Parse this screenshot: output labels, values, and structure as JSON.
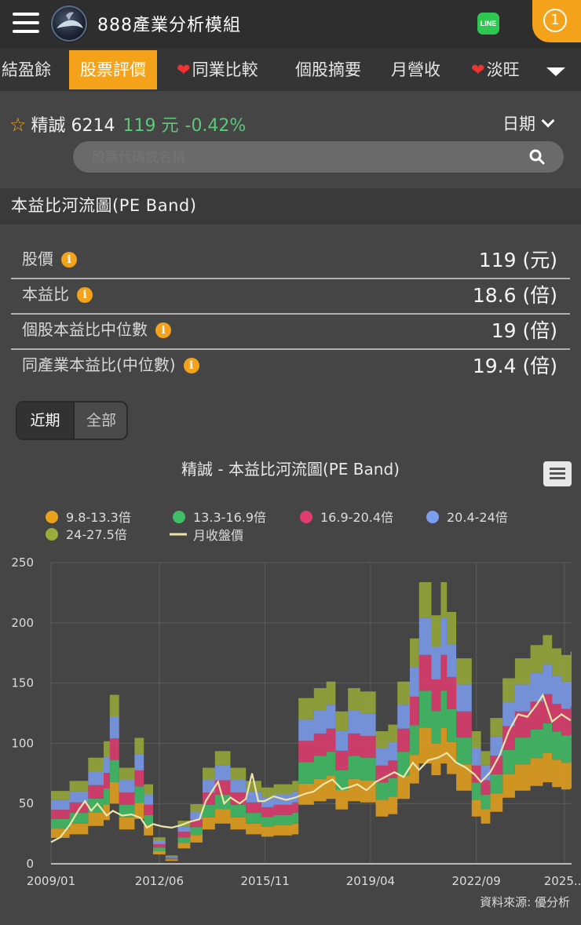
{
  "header": {
    "app_title": "888產業分析模組",
    "line_label": "LINE",
    "notification_count": "1"
  },
  "tabs": [
    {
      "label": "結盈餘",
      "active": false,
      "heart": false
    },
    {
      "label": "股票評價",
      "active": true,
      "heart": false
    },
    {
      "label": "同業比較",
      "active": false,
      "heart": true
    },
    {
      "label": "個股摘要",
      "active": false,
      "heart": false
    },
    {
      "label": "月營收",
      "active": false,
      "heart": false
    },
    {
      "label": "淡旺",
      "active": false,
      "heart": true
    }
  ],
  "stock": {
    "name_code": "精誠 6214",
    "price": "119 元",
    "change": "-0.42%",
    "date_label": "日期"
  },
  "search": {
    "placeholder": "股票代碼或名稱"
  },
  "section": {
    "title": "本益比河流圖(PE Band)"
  },
  "metrics": [
    {
      "label": "股價",
      "value": "119 (元)"
    },
    {
      "label": "本益比",
      "value": "18.6 (倍)"
    },
    {
      "label": "個股本益比中位數",
      "value": "19 (倍)"
    },
    {
      "label": "同產業本益比(中位數)",
      "value": "19.4 (倍)"
    }
  ],
  "range": {
    "recent": "近期",
    "all": "全部",
    "selected": "recent"
  },
  "colors": {
    "accent": "#f5a21b",
    "up_down": "#5cc879",
    "band1": "#e8a21c",
    "band2": "#3fbf66",
    "band3": "#e13c6e",
    "band4": "#7c9ef0",
    "band5": "#9aac3a",
    "price_line": "#ede6a8"
  },
  "chart_data": {
    "type": "area",
    "title": "精誠 - 本益比河流圖(PE Band)",
    "x_tick_labels": [
      "2009/01",
      "2012/06",
      "2015/11",
      "2019/04",
      "2022/09",
      "2025..."
    ],
    "y_ticks": [
      0,
      50,
      100,
      150,
      200,
      250
    ],
    "ylim": [
      0,
      250
    ],
    "grid": true,
    "legend_position": "top",
    "band_lower_multiples": [
      9.8,
      13.3,
      16.9,
      20.4,
      24,
      27.5
    ],
    "eps_ttm": [
      [
        2009.0,
        2.2
      ],
      [
        2009.6,
        2.5
      ],
      [
        2010.2,
        3.2
      ],
      [
        2010.7,
        3.7
      ],
      [
        2010.9,
        5.1
      ],
      [
        2011.2,
        2.9
      ],
      [
        2011.7,
        3.8
      ],
      [
        2012.0,
        2.4
      ],
      [
        2012.3,
        0.8
      ],
      [
        2012.7,
        0.25
      ],
      [
        2013.1,
        1.3
      ],
      [
        2013.5,
        1.8
      ],
      [
        2013.9,
        2.9
      ],
      [
        2014.3,
        3.4
      ],
      [
        2014.8,
        2.9
      ],
      [
        2015.3,
        2.5
      ],
      [
        2015.8,
        2.3
      ],
      [
        2016.2,
        2.4
      ],
      [
        2016.8,
        2.5
      ],
      [
        2017.0,
        5.0
      ],
      [
        2017.5,
        5.3
      ],
      [
        2017.9,
        5.5
      ],
      [
        2018.2,
        4.6
      ],
      [
        2018.6,
        5.3
      ],
      [
        2019.0,
        5.2
      ],
      [
        2019.5,
        4.0
      ],
      [
        2019.9,
        4.2
      ],
      [
        2020.2,
        5.5
      ],
      [
        2020.6,
        6.8
      ],
      [
        2020.9,
        8.5
      ],
      [
        2021.3,
        7.5
      ],
      [
        2021.6,
        8.5
      ],
      [
        2021.8,
        7.6
      ],
      [
        2022.1,
        6.2
      ],
      [
        2022.6,
        4.0
      ],
      [
        2022.9,
        3.4
      ],
      [
        2023.2,
        4.4
      ],
      [
        2023.6,
        5.6
      ],
      [
        2024.0,
        6.2
      ],
      [
        2024.5,
        6.6
      ],
      [
        2024.9,
        6.9
      ],
      [
        2025.2,
        6.5
      ],
      [
        2025.5,
        6.3
      ],
      [
        2025.8,
        6.4
      ]
    ],
    "series": [
      {
        "name": "9.8-13.3倍"
      },
      {
        "name": "13.3-16.9倍"
      },
      {
        "name": "16.9-20.4倍"
      },
      {
        "name": "20.4-24倍"
      },
      {
        "name": "24-27.5倍"
      },
      {
        "name": "月收盤價",
        "values": [
          [
            2009.0,
            18
          ],
          [
            2009.3,
            22
          ],
          [
            2009.6,
            32
          ],
          [
            2009.9,
            45
          ],
          [
            2010.1,
            52
          ],
          [
            2010.3,
            44
          ],
          [
            2010.5,
            50
          ],
          [
            2010.8,
            40
          ],
          [
            2011.0,
            44
          ],
          [
            2011.3,
            40
          ],
          [
            2011.6,
            41
          ],
          [
            2011.9,
            38
          ],
          [
            2012.1,
            30
          ],
          [
            2012.3,
            33
          ],
          [
            2012.6,
            31
          ],
          [
            2012.9,
            30
          ],
          [
            2013.2,
            32
          ],
          [
            2013.5,
            35
          ],
          [
            2013.8,
            37
          ],
          [
            2014.0,
            52
          ],
          [
            2014.2,
            60
          ],
          [
            2014.4,
            68
          ],
          [
            2014.6,
            50
          ],
          [
            2014.8,
            55
          ],
          [
            2015.1,
            50
          ],
          [
            2015.3,
            54
          ],
          [
            2015.5,
            75
          ],
          [
            2015.7,
            52
          ],
          [
            2015.9,
            52
          ],
          [
            2016.2,
            56
          ],
          [
            2016.6,
            53
          ],
          [
            2016.9,
            55
          ],
          [
            2017.2,
            58
          ],
          [
            2017.5,
            60
          ],
          [
            2017.8,
            66
          ],
          [
            2018.1,
            70
          ],
          [
            2018.4,
            62
          ],
          [
            2018.7,
            64
          ],
          [
            2018.9,
            66
          ],
          [
            2019.2,
            61
          ],
          [
            2019.5,
            68
          ],
          [
            2019.8,
            72
          ],
          [
            2020.1,
            76
          ],
          [
            2020.4,
            72
          ],
          [
            2020.7,
            84
          ],
          [
            2020.9,
            78
          ],
          [
            2021.2,
            86
          ],
          [
            2021.5,
            88
          ],
          [
            2021.8,
            92
          ],
          [
            2022.1,
            84
          ],
          [
            2022.4,
            80
          ],
          [
            2022.7,
            74
          ],
          [
            2022.9,
            68
          ],
          [
            2023.2,
            76
          ],
          [
            2023.5,
            90
          ],
          [
            2023.8,
            110
          ],
          [
            2024.1,
            124
          ],
          [
            2024.4,
            122
          ],
          [
            2024.7,
            132
          ],
          [
            2024.9,
            140
          ],
          [
            2025.2,
            118
          ],
          [
            2025.5,
            124
          ],
          [
            2025.8,
            119
          ]
        ]
      }
    ],
    "footnote": "資料來源: 優分析"
  }
}
